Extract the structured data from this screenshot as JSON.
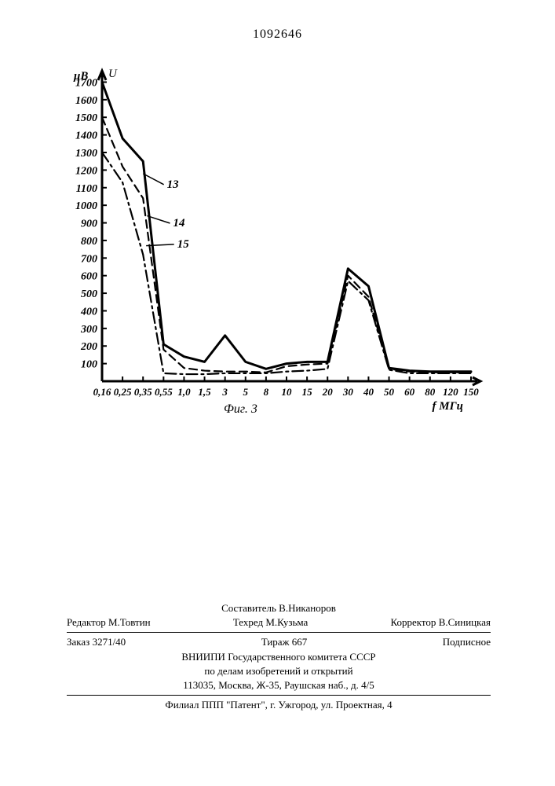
{
  "page_number": "1092646",
  "chart": {
    "type": "line",
    "background_color": "#ffffff",
    "axis_color": "#000000",
    "axis_width": 3,
    "label_fontsize": 15,
    "tick_fontsize": 14,
    "y_label_top": "μВ",
    "y_label_right": "U",
    "x_label": "f МГц",
    "figure_caption": "Фиг. 3",
    "y_ticks": [
      100,
      200,
      300,
      400,
      500,
      600,
      700,
      800,
      900,
      1000,
      1100,
      1200,
      1300,
      1400,
      1500,
      1600,
      1700
    ],
    "x_labels": [
      "0,16",
      "0,25",
      "0,35",
      "0,55",
      "1,0",
      "1,5",
      "3",
      "5",
      "8",
      "10",
      "15",
      "20",
      "30",
      "40",
      "50",
      "60",
      "80",
      "120",
      "150"
    ],
    "series_color": "#000000",
    "series_width_solid": 3,
    "series_width_dash": 2.2,
    "series": [
      {
        "name": "13",
        "style": "solid",
        "label_annotation": "13",
        "points": [
          [
            0,
            1700
          ],
          [
            1,
            1380
          ],
          [
            2,
            1250
          ],
          [
            3,
            210
          ],
          [
            4,
            140
          ],
          [
            5,
            110
          ],
          [
            6,
            260
          ],
          [
            7,
            110
          ],
          [
            8,
            70
          ],
          [
            9,
            100
          ],
          [
            10,
            110
          ],
          [
            11,
            110
          ],
          [
            12,
            640
          ],
          [
            13,
            540
          ],
          [
            14,
            75
          ],
          [
            15,
            60
          ],
          [
            16,
            55
          ],
          [
            17,
            55
          ],
          [
            18,
            55
          ]
        ]
      },
      {
        "name": "14",
        "style": "dash",
        "label_annotation": "14",
        "points": [
          [
            0,
            1500
          ],
          [
            1,
            1220
          ],
          [
            2,
            1040
          ],
          [
            3,
            180
          ],
          [
            4,
            75
          ],
          [
            5,
            60
          ],
          [
            6,
            55
          ],
          [
            7,
            55
          ],
          [
            8,
            50
          ],
          [
            9,
            85
          ],
          [
            10,
            95
          ],
          [
            11,
            100
          ],
          [
            12,
            600
          ],
          [
            13,
            480
          ],
          [
            14,
            70
          ],
          [
            15,
            55
          ],
          [
            16,
            50
          ],
          [
            17,
            50
          ],
          [
            18,
            50
          ]
        ]
      },
      {
        "name": "15",
        "style": "dashdot",
        "label_annotation": "15",
        "points": [
          [
            0,
            1300
          ],
          [
            1,
            1130
          ],
          [
            2,
            720
          ],
          [
            3,
            45
          ],
          [
            4,
            40
          ],
          [
            5,
            40
          ],
          [
            6,
            45
          ],
          [
            7,
            45
          ],
          [
            8,
            45
          ],
          [
            9,
            55
          ],
          [
            10,
            60
          ],
          [
            11,
            70
          ],
          [
            12,
            570
          ],
          [
            13,
            460
          ],
          [
            14,
            65
          ],
          [
            15,
            45
          ],
          [
            16,
            45
          ],
          [
            17,
            45
          ],
          [
            18,
            45
          ]
        ]
      }
    ],
    "annotations": [
      {
        "text": "13",
        "x_idx": 2.4,
        "y": 1100,
        "lead_to_x": 2.0,
        "lead_to_y": 1180
      },
      {
        "text": "14",
        "x_idx": 2.7,
        "y": 880,
        "lead_to_x": 2.2,
        "lead_to_y": 940
      },
      {
        "text": "15",
        "x_idx": 2.9,
        "y": 760,
        "lead_to_x": 2.15,
        "lead_to_y": 770
      }
    ]
  },
  "footer": {
    "compiler_label": "Составитель",
    "compiler": "В.Никаноров",
    "editor_label": "Редактор",
    "editor": "М.Товтин",
    "tech_label": "Техред",
    "tech": "М.Кузьма",
    "corrector_label": "Корректор",
    "corrector": "В.Синицкая",
    "order_label": "Заказ",
    "order": "3271/40",
    "circulation_label": "Тираж",
    "circulation": "667",
    "subscription": "Подписное",
    "org_line1": "ВНИИПИ Государственного комитета СССР",
    "org_line2": "по делам изобретений и открытий",
    "org_addr": "113035, Москва, Ж-35, Раушская наб., д. 4/5",
    "branch": "Филиал ППП \"Патент\", г. Ужгород, ул. Проектная, 4"
  }
}
